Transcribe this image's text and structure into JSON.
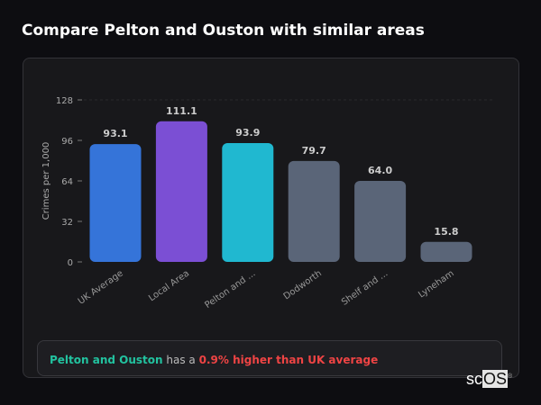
{
  "title": "Compare Pelton and Ouston with similar areas",
  "chart_data": {
    "type": "bar",
    "categories": [
      "UK Average",
      "Local Area",
      "Pelton and ...",
      "Dodworth",
      "Shelf and ...",
      "Lyneham"
    ],
    "values": [
      93.1,
      111.1,
      93.9,
      79.7,
      64.0,
      15.8
    ],
    "colors": [
      "#3574d9",
      "#7b4fd4",
      "#20b8d0",
      "#5a6578",
      "#5a6578",
      "#5a6578"
    ],
    "ylabel": "Crimes per 1,000",
    "xlabel": "",
    "yticks": [
      0,
      32,
      64,
      96,
      128
    ],
    "ylim": [
      0,
      128
    ],
    "grid": false
  },
  "footer": {
    "area": "Pelton and Ouston",
    "mid": "has a",
    "diff": "0.9% higher than UK average"
  },
  "logo": {
    "a": "sc",
    "b": "OS",
    "mark": "®"
  }
}
